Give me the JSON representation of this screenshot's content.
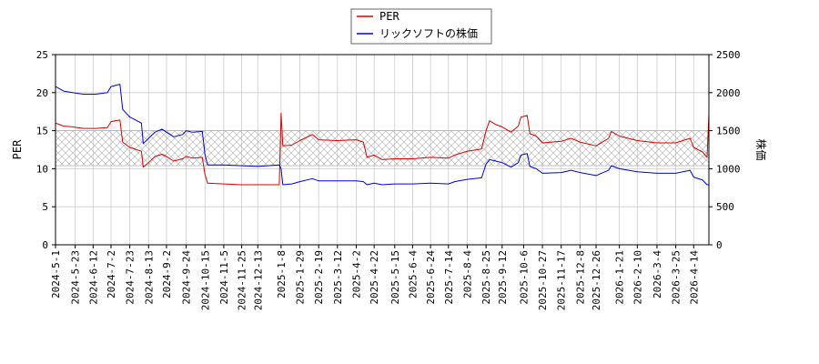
{
  "chart_data": {
    "type": "line",
    "legend": {
      "position": "top-center",
      "entries": [
        {
          "label": "PER",
          "color": "#dd0000"
        },
        {
          "label": "リックソフトの株価",
          "color": "#0000dd"
        }
      ]
    },
    "y_left": {
      "label": "PER",
      "lim": [
        0,
        25
      ],
      "ticks": [
        0,
        5,
        10,
        15,
        20,
        25
      ]
    },
    "y_right": {
      "label": "株価",
      "lim": [
        0,
        2500
      ],
      "ticks": [
        0,
        500,
        1000,
        1500,
        2000,
        2500
      ]
    },
    "x_lim": [
      "2024-05-01",
      "2026-05-01"
    ],
    "x_ticks": [
      "2024-5-1",
      "2024-5-23",
      "2024-6-12",
      "2024-7-2",
      "2024-7-23",
      "2024-8-13",
      "2024-9-2",
      "2024-9-24",
      "2024-10-15",
      "2024-11-5",
      "2024-11-25",
      "2024-12-13",
      "2025-1-8",
      "2025-1-29",
      "2025-2-19",
      "2025-3-12",
      "2025-4-2",
      "2025-4-22",
      "2025-5-15",
      "2025-6-4",
      "2025-6-24",
      "2025-7-14",
      "2025-8-4",
      "2025-8-25",
      "2025-9-12",
      "2025-10-6",
      "2025-10-27",
      "2025-11-17",
      "2025-12-8",
      "2025-12-26",
      "2026-1-21",
      "2026-2-10",
      "2026-3-4",
      "2026-3-25",
      "2026-4-14"
    ],
    "grid": true,
    "band": {
      "axis": "left",
      "from": 10.4,
      "to": 15,
      "pattern": "crosshatch"
    },
    "series": [
      {
        "name": "PER",
        "axis": "left",
        "color": "#dd0000",
        "points": [
          [
            "2024-05-01",
            16.0
          ],
          [
            "2024-05-10",
            15.6
          ],
          [
            "2024-05-20",
            15.5
          ],
          [
            "2024-06-01",
            15.3
          ],
          [
            "2024-06-15",
            15.3
          ],
          [
            "2024-06-28",
            15.4
          ],
          [
            "2024-07-02",
            16.2
          ],
          [
            "2024-07-12",
            16.4
          ],
          [
            "2024-07-15",
            13.5
          ],
          [
            "2024-07-23",
            12.8
          ],
          [
            "2024-08-05",
            12.3
          ],
          [
            "2024-08-07",
            10.2
          ],
          [
            "2024-08-13",
            10.8
          ],
          [
            "2024-08-20",
            11.6
          ],
          [
            "2024-08-28",
            11.9
          ],
          [
            "2024-09-02",
            11.6
          ],
          [
            "2024-09-10",
            11.0
          ],
          [
            "2024-09-20",
            11.3
          ],
          [
            "2024-09-24",
            11.6
          ],
          [
            "2024-10-01",
            11.4
          ],
          [
            "2024-10-12",
            11.5
          ],
          [
            "2024-10-15",
            9.2
          ],
          [
            "2024-10-18",
            8.1
          ],
          [
            "2024-11-05",
            8.0
          ],
          [
            "2024-11-25",
            7.9
          ],
          [
            "2024-12-13",
            7.9
          ],
          [
            "2025-01-06",
            7.9
          ],
          [
            "2025-01-08",
            17.3
          ],
          [
            "2025-01-10",
            13.0
          ],
          [
            "2025-01-20",
            13.1
          ],
          [
            "2025-01-29",
            13.7
          ],
          [
            "2025-02-12",
            14.5
          ],
          [
            "2025-02-19",
            13.8
          ],
          [
            "2025-03-12",
            13.7
          ],
          [
            "2025-04-02",
            13.8
          ],
          [
            "2025-04-10",
            13.5
          ],
          [
            "2025-04-14",
            11.5
          ],
          [
            "2025-04-22",
            11.8
          ],
          [
            "2025-05-01",
            11.2
          ],
          [
            "2025-05-15",
            11.3
          ],
          [
            "2025-06-04",
            11.3
          ],
          [
            "2025-06-24",
            11.5
          ],
          [
            "2025-07-14",
            11.4
          ],
          [
            "2025-07-21",
            11.8
          ],
          [
            "2025-08-04",
            12.3
          ],
          [
            "2025-08-20",
            12.6
          ],
          [
            "2025-08-25",
            15.0
          ],
          [
            "2025-08-29",
            16.3
          ],
          [
            "2025-09-05",
            15.8
          ],
          [
            "2025-09-12",
            15.5
          ],
          [
            "2025-09-22",
            14.8
          ],
          [
            "2025-09-30",
            15.6
          ],
          [
            "2025-10-03",
            16.8
          ],
          [
            "2025-10-10",
            17.0
          ],
          [
            "2025-10-13",
            14.6
          ],
          [
            "2025-10-20",
            14.3
          ],
          [
            "2025-10-27",
            13.4
          ],
          [
            "2025-11-17",
            13.6
          ],
          [
            "2025-11-28",
            14.0
          ],
          [
            "2025-12-08",
            13.5
          ],
          [
            "2025-12-26",
            13.0
          ],
          [
            "2026-01-09",
            14.0
          ],
          [
            "2026-01-12",
            14.9
          ],
          [
            "2026-01-21",
            14.3
          ],
          [
            "2026-02-10",
            13.7
          ],
          [
            "2026-03-04",
            13.4
          ],
          [
            "2026-03-25",
            13.4
          ],
          [
            "2026-04-10",
            14.0
          ],
          [
            "2026-04-14",
            12.8
          ],
          [
            "2026-04-24",
            12.2
          ],
          [
            "2026-04-29",
            11.5
          ],
          [
            "2026-05-01",
            17.2
          ]
        ]
      },
      {
        "name": "リックソフトの株価",
        "axis": "right",
        "color": "#0000dd",
        "points": [
          [
            "2024-05-01",
            2080
          ],
          [
            "2024-05-10",
            2020
          ],
          [
            "2024-05-20",
            2000
          ],
          [
            "2024-06-01",
            1980
          ],
          [
            "2024-06-15",
            1980
          ],
          [
            "2024-06-28",
            2000
          ],
          [
            "2024-07-02",
            2080
          ],
          [
            "2024-07-12",
            2110
          ],
          [
            "2024-07-15",
            1780
          ],
          [
            "2024-07-23",
            1680
          ],
          [
            "2024-08-05",
            1600
          ],
          [
            "2024-08-07",
            1330
          ],
          [
            "2024-08-13",
            1400
          ],
          [
            "2024-08-20",
            1480
          ],
          [
            "2024-08-28",
            1520
          ],
          [
            "2024-09-02",
            1480
          ],
          [
            "2024-09-10",
            1420
          ],
          [
            "2024-09-20",
            1450
          ],
          [
            "2024-09-24",
            1500
          ],
          [
            "2024-10-01",
            1480
          ],
          [
            "2024-10-12",
            1490
          ],
          [
            "2024-10-15",
            1180
          ],
          [
            "2024-10-18",
            1050
          ],
          [
            "2024-11-05",
            1050
          ],
          [
            "2024-11-25",
            1040
          ],
          [
            "2024-12-13",
            1030
          ],
          [
            "2025-01-06",
            1050
          ],
          [
            "2025-01-08",
            1000
          ],
          [
            "2025-01-10",
            790
          ],
          [
            "2025-01-20",
            800
          ],
          [
            "2025-01-29",
            830
          ],
          [
            "2025-02-12",
            870
          ],
          [
            "2025-02-19",
            840
          ],
          [
            "2025-03-12",
            840
          ],
          [
            "2025-04-02",
            840
          ],
          [
            "2025-04-10",
            830
          ],
          [
            "2025-04-14",
            790
          ],
          [
            "2025-04-22",
            810
          ],
          [
            "2025-05-01",
            790
          ],
          [
            "2025-05-15",
            800
          ],
          [
            "2025-06-04",
            800
          ],
          [
            "2025-06-24",
            810
          ],
          [
            "2025-07-14",
            800
          ],
          [
            "2025-07-21",
            830
          ],
          [
            "2025-08-04",
            860
          ],
          [
            "2025-08-20",
            880
          ],
          [
            "2025-08-25",
            1060
          ],
          [
            "2025-08-29",
            1120
          ],
          [
            "2025-09-05",
            1100
          ],
          [
            "2025-09-12",
            1080
          ],
          [
            "2025-09-22",
            1020
          ],
          [
            "2025-09-30",
            1080
          ],
          [
            "2025-10-03",
            1180
          ],
          [
            "2025-10-10",
            1200
          ],
          [
            "2025-10-13",
            1030
          ],
          [
            "2025-10-20",
            1000
          ],
          [
            "2025-10-27",
            940
          ],
          [
            "2025-11-17",
            950
          ],
          [
            "2025-11-28",
            980
          ],
          [
            "2025-12-08",
            950
          ],
          [
            "2025-12-26",
            910
          ],
          [
            "2026-01-09",
            980
          ],
          [
            "2026-01-12",
            1040
          ],
          [
            "2026-01-21",
            1000
          ],
          [
            "2026-02-10",
            960
          ],
          [
            "2026-03-04",
            940
          ],
          [
            "2026-03-25",
            940
          ],
          [
            "2026-04-10",
            980
          ],
          [
            "2026-04-14",
            890
          ],
          [
            "2026-04-24",
            850
          ],
          [
            "2026-04-29",
            790
          ],
          [
            "2026-05-01",
            790
          ]
        ]
      }
    ]
  }
}
